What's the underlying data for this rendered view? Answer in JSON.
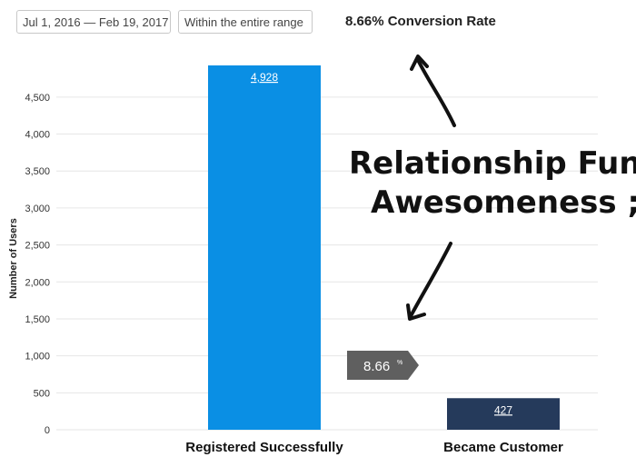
{
  "toolbar": {
    "date_range": "Jul 1, 2016 — Feb 19, 2017",
    "range_scope": "Within the entire range",
    "conversion_summary": "8.66% Conversion Rate"
  },
  "annotation": {
    "line1": "Relationship Funnel",
    "line2": "Awesomeness ;-)"
  },
  "conversion_badge": {
    "value": "8.66",
    "unit": "%"
  },
  "colors": {
    "bar_registered": "#0a8fe4",
    "bar_customer": "#253a5b",
    "badge": "#5f5f5f",
    "grid": "#e6e6e6"
  },
  "icons": [
    "chevron-down-icon",
    "arrow-icon"
  ],
  "chart_data": {
    "type": "bar",
    "title": "",
    "xlabel": "",
    "ylabel": "Number of Users",
    "categories": [
      "Registered Successfully",
      "Became Customer"
    ],
    "values": [
      4928,
      427
    ],
    "value_labels": [
      "4,928",
      "427"
    ],
    "ylim": [
      0,
      4928
    ],
    "yticks": [
      0,
      500,
      1000,
      1500,
      2000,
      2500,
      3000,
      3500,
      4000,
      4500
    ],
    "ytick_labels": [
      "0",
      "500",
      "1,000",
      "1,500",
      "2,000",
      "2,500",
      "3,000",
      "3,500",
      "4,000",
      "4,500"
    ],
    "grid": true,
    "legend": "none",
    "conversion_rate_percent": 8.66
  }
}
